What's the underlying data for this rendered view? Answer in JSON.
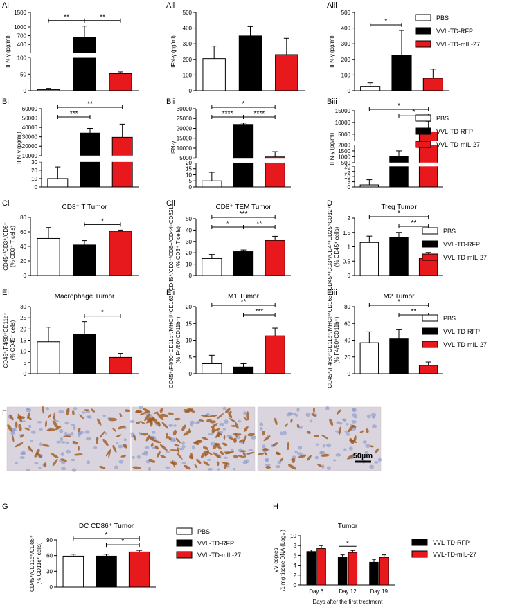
{
  "colors": {
    "pbs": "#ffffff",
    "rfp": "#000000",
    "il27": "#e8191c",
    "stroke": "#000000",
    "micro_bg": "#d9d4de",
    "micro_cell": "#a05a1e",
    "micro_nucleus": "#7f8fc7"
  },
  "legend": {
    "pbs": "PBS",
    "rfp": "VVL-TD-RFP",
    "il27": "VVL-TD-mIL-27"
  },
  "legend_h": {
    "rfp": "VVL-TD-RFP",
    "il27": "VVL-TD-mIL-27"
  },
  "scale_bar": "50µm",
  "panel_F": {
    "label": "F",
    "images": [
      "tumor-section-PBS",
      "tumor-section-VVL-TD-RFP",
      "tumor-section-VVL-TD-mIL-27"
    ]
  },
  "chart_data": [
    {
      "id": "Ai",
      "label": "Ai",
      "type": "bar",
      "title": "",
      "ylabel": "IFN-γ (pg/ml)",
      "categories": [
        "PBS",
        "VVL-TD-RFP",
        "VVL-TD-mIL-27"
      ],
      "values": [
        3,
        650,
        52
      ],
      "errors": [
        4,
        380,
        5
      ],
      "axis": {
        "breaks": [
          {
            "range": [
              0,
              100
            ],
            "ticks": [
              0,
              50,
              100
            ]
          },
          {
            "range": [
              100,
              1500
            ],
            "ticks": [
              400,
              700,
              1000,
              1500
            ]
          }
        ]
      },
      "sig": [
        {
          "a": 0,
          "b": 1,
          "text": "**"
        },
        {
          "a": 1,
          "b": 2,
          "text": "**"
        }
      ]
    },
    {
      "id": "Aii",
      "label": "Aii",
      "type": "bar",
      "title": "",
      "ylabel": "IFN-γ (pg/ml)",
      "categories": [
        "PBS",
        "VVL-TD-RFP",
        "VVL-TD-mIL-27"
      ],
      "values": [
        205,
        350,
        230
      ],
      "errors": [
        80,
        60,
        105
      ],
      "axis": {
        "range": [
          0,
          500
        ],
        "ticks": [
          0,
          100,
          200,
          300,
          400,
          500
        ]
      },
      "sig": []
    },
    {
      "id": "Aiii",
      "label": "Aiii",
      "type": "bar",
      "title": "",
      "ylabel": "IFN-γ (pg/ml)",
      "categories": [
        "PBS",
        "VVL-TD-RFP",
        "VVL-TD-mIL-27"
      ],
      "values": [
        28,
        225,
        80
      ],
      "errors": [
        22,
        160,
        58
      ],
      "axis": {
        "range": [
          0,
          500
        ],
        "ticks": [
          0,
          100,
          200,
          300,
          400,
          500
        ]
      },
      "sig": [
        {
          "a": 0,
          "b": 1,
          "text": "*"
        }
      ]
    },
    {
      "id": "Bi",
      "label": "Bi",
      "type": "bar",
      "title": "",
      "ylabel": "IFN-γ (pg/ml)",
      "categories": [
        "PBS",
        "VVL-TD-RFP",
        "VVL-TD-mIL-27"
      ],
      "values": [
        10,
        34000,
        29500
      ],
      "errors": [
        14,
        5000,
        14000
      ],
      "axis": {
        "breaks": [
          {
            "range": [
              0,
              30
            ],
            "ticks": [
              0,
              10,
              20,
              30
            ]
          },
          {
            "range": [
              10000,
              60000
            ],
            "ticks": [
              10000,
              20000,
              30000,
              40000,
              50000,
              60000
            ]
          }
        ]
      },
      "sig": [
        {
          "a": 0,
          "b": 1,
          "text": "***"
        },
        {
          "a": 0,
          "b": 2,
          "text": "**"
        }
      ]
    },
    {
      "id": "Bii",
      "label": "Bii",
      "type": "bar",
      "title": "",
      "ylabel": "IFN-γ",
      "categories": [
        "PBS",
        "VVL-TD-RFP",
        "VVL-TD-mIL-27"
      ],
      "values": [
        5,
        22000,
        5500
      ],
      "errors": [
        7,
        700,
        2700
      ],
      "axis": {
        "breaks": [
          {
            "range": [
              0,
              20
            ],
            "ticks": [
              0,
              5,
              10,
              15,
              20
            ]
          },
          {
            "range": [
              5000,
              30000
            ],
            "ticks": [
              5000,
              10000,
              15000,
              20000,
              25000,
              30000
            ]
          }
        ]
      },
      "sig": [
        {
          "a": 0,
          "b": 1,
          "text": "****"
        },
        {
          "a": 1,
          "b": 2,
          "text": "****"
        },
        {
          "a": 0,
          "b": 2,
          "text": "*"
        }
      ]
    },
    {
      "id": "Biii",
      "label": "Biii",
      "type": "bar",
      "title": "",
      "ylabel": "IFN-γ (pg/ml)",
      "categories": [
        "PBS",
        "VVL-TD-RFP",
        "VVL-TD-mIL-27"
      ],
      "values": [
        2,
        1050,
        6000
      ],
      "errors": [
        5,
        450,
        4500
      ],
      "axis": {
        "breaks": [
          {
            "range": [
              0,
              20
            ],
            "ticks": [
              0,
              5,
              10,
              15,
              20
            ]
          },
          {
            "range": [
              500,
              2000
            ],
            "ticks": [
              500,
              1000,
              1500,
              2000
            ]
          },
          {
            "range": [
              2000,
              15000
            ],
            "ticks": [
              5000,
              10000,
              15000
            ]
          }
        ]
      },
      "sig": [
        {
          "a": 1,
          "b": 2,
          "text": "*"
        },
        {
          "a": 0,
          "b": 2,
          "text": "*"
        }
      ]
    },
    {
      "id": "Ci",
      "label": "Ci",
      "type": "bar",
      "title": "CD8⁺ T Tumor",
      "ylabel": "CD45⁺/CD3⁺/CD8⁺",
      "ylabel2": "(% CD3⁺ T cells)",
      "categories": [
        "PBS",
        "VVL-TD-RFP",
        "VVL-TD-mIL-27"
      ],
      "values": [
        51,
        42,
        61
      ],
      "errors": [
        15,
        6,
        1.5
      ],
      "axis": {
        "range": [
          0,
          80
        ],
        "ticks": [
          0,
          20,
          40,
          60,
          80
        ]
      },
      "sig": [
        {
          "a": 1,
          "b": 2,
          "text": "*"
        }
      ]
    },
    {
      "id": "Cii",
      "label": "Cii",
      "type": "bar",
      "title": "CD8⁺ TEM Tumor",
      "ylabel": "CD45⁺/CD3⁺/CD8+/CD44ʰⁱCD62Lˡᵒ",
      "ylabel2": "(% CD3⁺ T cells)",
      "categories": [
        "PBS",
        "VVL-TD-RFP",
        "VVL-TD-mIL-27"
      ],
      "values": [
        15,
        21,
        31
      ],
      "errors": [
        3.5,
        1.5,
        3.5
      ],
      "axis": {
        "range": [
          0,
          50
        ],
        "ticks": [
          0,
          10,
          20,
          30,
          40,
          50
        ]
      },
      "sig": [
        {
          "a": 0,
          "b": 1,
          "text": "*"
        },
        {
          "a": 1,
          "b": 2,
          "text": "**"
        },
        {
          "a": 0,
          "b": 2,
          "text": "***"
        }
      ]
    },
    {
      "id": "D",
      "label": "D",
      "type": "bar",
      "title": "Treg Tumor",
      "ylabel": "CD45⁺/CD3⁺/CD4⁺/CD25ʰⁱCD127ˡᵒ",
      "ylabel2": "(% CD45⁺ cells)",
      "categories": [
        "PBS",
        "VVL-TD-RFP",
        "VVL-TD-mIL-27"
      ],
      "values": [
        1.15,
        1.32,
        0.6
      ],
      "errors": [
        0.22,
        0.18,
        0.2
      ],
      "axis": {
        "range": [
          0,
          2
        ],
        "ticks": [
          0,
          0.5,
          1,
          1.5,
          2
        ]
      },
      "sig": [
        {
          "a": 1,
          "b": 2,
          "text": "**"
        },
        {
          "a": 0,
          "b": 2,
          "text": "*"
        }
      ]
    },
    {
      "id": "Ei",
      "label": "Ei",
      "type": "bar",
      "title": "Macrophage Tumor",
      "ylabel": "CD45⁺/F4/80⁺CD11b⁺",
      "ylabel2": "(% CD45⁺ cells)",
      "categories": [
        "PBS",
        "VVL-TD-RFP",
        "VVL-TD-mIL-27"
      ],
      "values": [
        14.3,
        17.5,
        7.3
      ],
      "errors": [
        6.5,
        5.8,
        1.8
      ],
      "axis": {
        "range": [
          0,
          30
        ],
        "ticks": [
          0,
          5,
          10,
          15,
          20,
          25,
          30
        ]
      },
      "sig": [
        {
          "a": 1,
          "b": 2,
          "text": "*"
        }
      ]
    },
    {
      "id": "Eii",
      "label": "Eii",
      "type": "bar",
      "title": "M1 Tumor",
      "ylabel": "CD45⁺/F4/80⁺CD11b⁺/MHCIIʰⁱCD163⁻",
      "ylabel2": "(% F4/80⁺CD11b⁺)",
      "categories": [
        "PBS",
        "VVL-TD-RFP",
        "VVL-TD-mIL-27"
      ],
      "values": [
        3,
        2,
        11.3
      ],
      "errors": [
        2.5,
        1,
        2.3
      ],
      "axis": {
        "range": [
          0,
          20
        ],
        "ticks": [
          0,
          5,
          10,
          15,
          20
        ]
      },
      "sig": [
        {
          "a": 1,
          "b": 2,
          "text": "***"
        },
        {
          "a": 0,
          "b": 2,
          "text": "**"
        }
      ]
    },
    {
      "id": "Eiii",
      "label": "Eiii",
      "type": "bar",
      "title": "M2 Tumor",
      "ylabel": "CD45⁺/F4/80⁺CD11b⁺/MHCIIˡᵒCD163⁺",
      "ylabel2": "(% F4/80⁺CD11b⁺)",
      "categories": [
        "PBS",
        "VVL-TD-RFP",
        "VVL-TD-mIL-27"
      ],
      "values": [
        37,
        41.5,
        10
      ],
      "errors": [
        13,
        11,
        4
      ],
      "axis": {
        "range": [
          0,
          80
        ],
        "ticks": [
          0,
          20,
          40,
          60,
          80
        ]
      },
      "sig": [
        {
          "a": 1,
          "b": 2,
          "text": "**"
        },
        {
          "a": 0,
          "b": 2,
          "text": "*"
        }
      ]
    },
    {
      "id": "G",
      "label": "G",
      "type": "bar",
      "title": "DC CD86⁺ Tumor",
      "ylabel": "CD45⁺/CD11c⁺/CD86⁺",
      "ylabel2": "(% CD11c⁺ cells)",
      "categories": [
        "PBS",
        "VVL-TD-RFP",
        "VVL-TD-mIL-27"
      ],
      "values": [
        59,
        59,
        67
      ],
      "errors": [
        3.5,
        3.5,
        3
      ],
      "axis": {
        "range": [
          0,
          90
        ],
        "ticks": [
          0,
          30,
          60,
          90
        ]
      },
      "sig": [
        {
          "a": 1,
          "b": 2,
          "text": "*"
        },
        {
          "a": 0,
          "b": 2,
          "text": "*"
        }
      ]
    },
    {
      "id": "H",
      "label": "H",
      "type": "bar",
      "title": "Tumor",
      "ylabel": "VV copies",
      "ylabel2": "/1 mg tissue DNA (Log₁₀)",
      "xlabel": "Days after the first treatment",
      "categories": [
        "Day 6",
        "Day 12",
        "Day 19"
      ],
      "series": [
        {
          "name": "VVL-TD-RFP",
          "values": [
            6.8,
            5.7,
            4.6
          ],
          "errors": [
            0.3,
            0.4,
            0.6
          ]
        },
        {
          "name": "VVL-TD-mIL-27",
          "values": [
            7.4,
            6.6,
            5.6
          ],
          "errors": [
            0.6,
            0.4,
            0.5
          ]
        }
      ],
      "axis": {
        "range": [
          0,
          10
        ],
        "ticks": [
          0,
          2,
          4,
          6,
          8,
          10
        ]
      },
      "sig": [
        {
          "group": 1,
          "text": "*"
        }
      ]
    }
  ]
}
